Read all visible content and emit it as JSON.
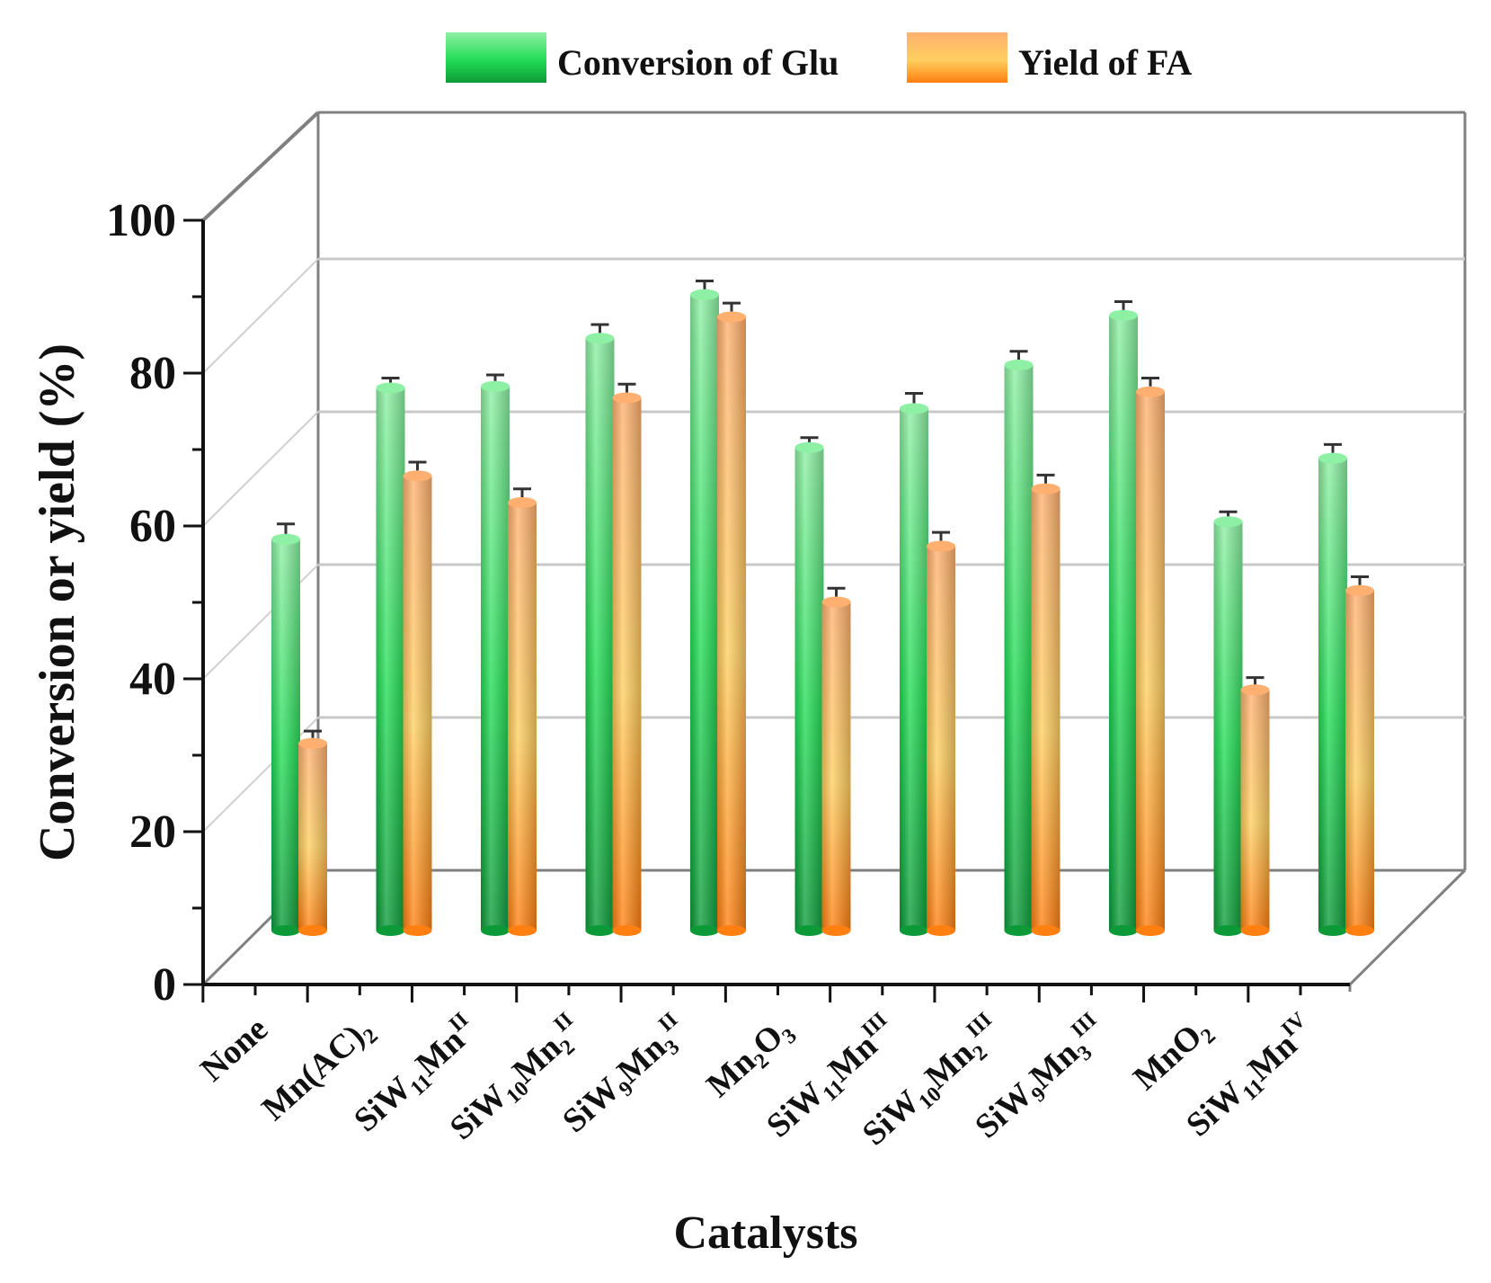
{
  "chart_data": {
    "type": "bar",
    "xlabel": "Catalysts",
    "ylabel": "Conversion or yield  (%)",
    "ylim": [
      0,
      100
    ],
    "yticks": [
      0,
      20,
      40,
      60,
      80,
      100
    ],
    "grid": true,
    "legend_position": "top",
    "categories": [
      {
        "label": "None",
        "base": "None",
        "sub": "",
        "sup": ""
      },
      {
        "label": "Mn(AC)2",
        "base": "Mn(AC)",
        "sub": "2",
        "sup": ""
      },
      {
        "label": "SiW11MnII",
        "base": "SiW",
        "sub": "11",
        "base2": "Mn",
        "sup": "II"
      },
      {
        "label": "SiW10Mn2II",
        "base": "SiW",
        "sub": "10",
        "base2": "Mn",
        "sub2": "2",
        "sup": "II"
      },
      {
        "label": "SiW9Mn3II",
        "base": "SiW",
        "sub": "9",
        "base2": "Mn",
        "sub2": "3",
        "sup": "II"
      },
      {
        "label": "Mn2O3",
        "base": "Mn",
        "sub": "2",
        "base2": "O",
        "sub2": "3",
        "sup": ""
      },
      {
        "label": "SiW11MnIII",
        "base": "SiW",
        "sub": "11",
        "base2": "Mn",
        "sup": "III"
      },
      {
        "label": "SiW10Mn2III",
        "base": "SiW",
        "sub": "10",
        "base2": "Mn",
        "sub2": "2",
        "sup": "III"
      },
      {
        "label": "SiW9Mn3III",
        "base": "SiW",
        "sub": "9",
        "base2": "Mn",
        "sub2": "3",
        "sup": "III"
      },
      {
        "label": "MnO2",
        "base": "MnO",
        "sub": "2",
        "sup": ""
      },
      {
        "label": "SiW11MnIV",
        "base": "SiW",
        "sub": "11",
        "base2": "Mn",
        "sup": "IV"
      }
    ],
    "series": [
      {
        "name": "Conversion of Glu",
        "color_top": "#8ef0a4",
        "color_mid": "#22dd55",
        "color_bottom": "#0c9a38",
        "values": [
          51.2,
          71.0,
          71.2,
          77.5,
          83.2,
          63.2,
          68.3,
          74.0,
          80.5,
          53.5,
          61.8
        ],
        "errors": [
          2.0,
          1.3,
          1.5,
          1.8,
          1.8,
          1.3,
          2.0,
          1.8,
          1.8,
          1.3,
          1.8
        ]
      },
      {
        "name": "Yield of FA",
        "color_top": "#ffb070",
        "color_mid": "#ffcf60",
        "color_bottom": "#ff7f10",
        "values": [
          24.5,
          59.5,
          56.0,
          69.7,
          80.3,
          43.0,
          50.3,
          57.8,
          70.5,
          31.5,
          44.5
        ],
        "errors": [
          1.6,
          1.8,
          1.8,
          1.8,
          1.8,
          1.8,
          1.8,
          1.8,
          1.8,
          1.6,
          1.8
        ]
      }
    ]
  }
}
